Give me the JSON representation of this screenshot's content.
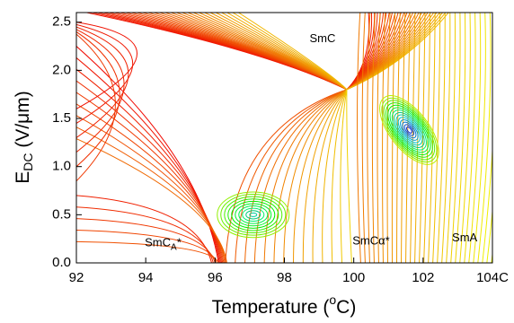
{
  "chart_data": {
    "type": "contour",
    "x_label": {
      "text": "Temperature (",
      "sup": "o",
      "end": "C)"
    },
    "y_label": {
      "text": "E",
      "sub": "DC",
      "end": " (V/μm)"
    },
    "xlim": [
      92,
      104
    ],
    "xticks": [
      92,
      94,
      96,
      98,
      100,
      102,
      {
        "value": 104,
        "label": "104C"
      }
    ],
    "ylim": [
      0,
      2.6
    ],
    "yticks": [
      {
        "value": 0,
        "label": "0.0"
      },
      0.5,
      {
        "value": 1,
        "label": "1.0"
      },
      1.5,
      {
        "value": 2,
        "label": "2.0"
      },
      2.5
    ],
    "annotations": [
      {
        "text": "SmC",
        "x": 99.1,
        "y": 2.32
      },
      {
        "text": "SmC",
        "sub": "A",
        "end": "*",
        "x": 94.5,
        "y": 0.2
      },
      {
        "text": "SmCα*",
        "x": 100.5,
        "y": 0.22
      },
      {
        "text": "SmA",
        "x": 103.2,
        "y": 0.25
      }
    ]
  }
}
